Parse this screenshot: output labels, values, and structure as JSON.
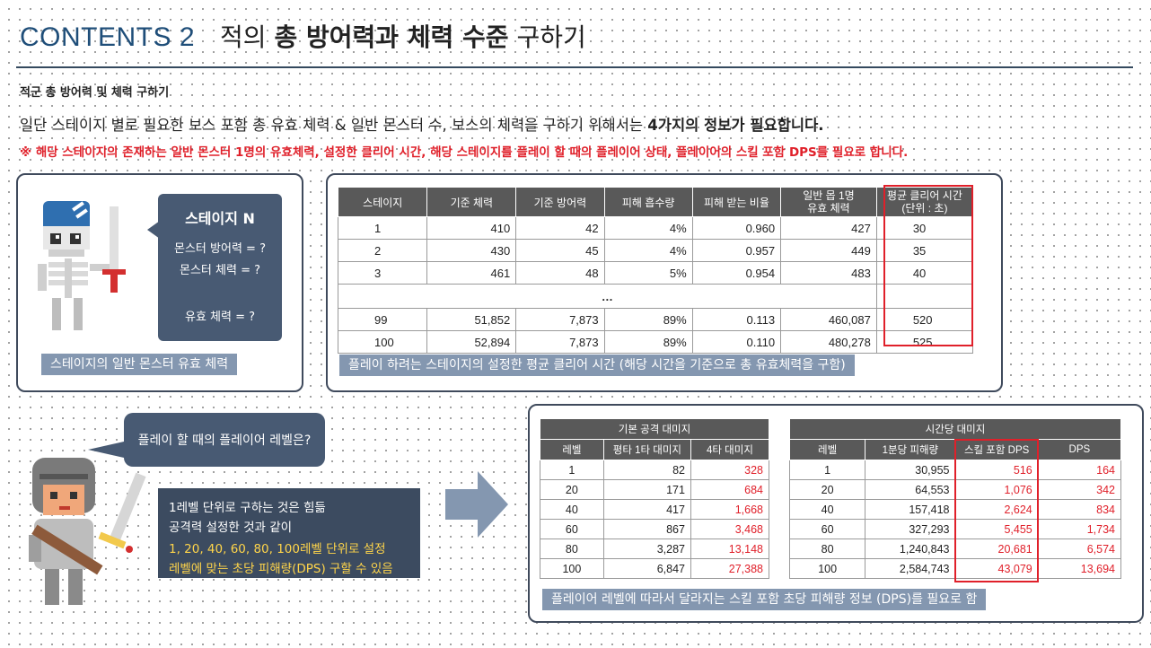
{
  "title": {
    "contents": "CONTENTS 2",
    "pre": "적의 ",
    "bold": "총 방어력과 체력 수준",
    "post": " 구하기"
  },
  "subtitle": "적군 총 방어력 및 체력 구하기",
  "desc1": {
    "text": "일단 스테이지 별로 필요한 보스 포함 총 유효 체력 & 일반 몬스터 수, 보스의 체력을 구하기 위해서는 ",
    "bold": "4가지의 정보가 필요합니다."
  },
  "desc2": "※ 해당 스테이지의 존재하는 일반 몬스터 1명의 유효체력, 설정한 클리어 시간, 해당 스테이지를 플레이 할 때의 플레이어 상태, 플레이어의 스킬 포함 DPS를 필요로 합니다.",
  "stage_bubble": {
    "title": "스테이지 N",
    "line1": "몬스터 방어력 = ?",
    "line2": "몬스터 체력 = ?",
    "line3": "유효 체력 = ?"
  },
  "caption_left": "스테이지의 일반 몬스터 유효 체력",
  "caption_right": "플레이 하려는 스테이지의 설정한 평균 클리어 시간 (해당 시간을 기준으로 총 유효체력을 구함)",
  "stage_table": {
    "headers": [
      "스테이지",
      "기준 체력",
      "기준 방어력",
      "피해 흡수량",
      "피해 받는 비율",
      "일반 몹 1명\n유효 체력",
      "평균 클리어 시간\n(단위 : 초)"
    ],
    "rows": [
      [
        "1",
        "410",
        "42",
        "4%",
        "0.960",
        "427",
        "30"
      ],
      [
        "2",
        "430",
        "45",
        "4%",
        "0.957",
        "449",
        "35"
      ],
      [
        "3",
        "461",
        "48",
        "5%",
        "0.954",
        "483",
        "40"
      ],
      [
        "99",
        "51,852",
        "7,873",
        "89%",
        "0.113",
        "460,087",
        "520"
      ],
      [
        "100",
        "52,894",
        "7,873",
        "89%",
        "0.110",
        "480,278",
        "525"
      ]
    ],
    "ellipsis": "…"
  },
  "level_bubble": "플레이 할 때의 플레이어 레벨은?",
  "info_bubble": {
    "line1": "1레벨 단위로 구하는 것은 힘듦",
    "line2": "공격력 설정한 것과 같이",
    "line3": "1, 20, 40, 60, 80, 100레벨  단위로 설정",
    "line4": "레벨에 맞는 초당 피해량(DPS) 구할 수 있음"
  },
  "base_table": {
    "title": "기본 공격 대미지",
    "headers": [
      "레벨",
      "평타 1타 대미지",
      "4타 대미지"
    ],
    "rows": [
      [
        "1",
        "82",
        "328"
      ],
      [
        "20",
        "171",
        "684"
      ],
      [
        "40",
        "417",
        "1,668"
      ],
      [
        "60",
        "867",
        "3,468"
      ],
      [
        "80",
        "3,287",
        "13,148"
      ],
      [
        "100",
        "6,847",
        "27,388"
      ]
    ]
  },
  "time_table": {
    "title": "시간당 대미지",
    "headers": [
      "레벨",
      "1분당 피해량",
      "스킬 포함 DPS",
      "DPS"
    ],
    "rows": [
      [
        "1",
        "30,955",
        "516",
        "164"
      ],
      [
        "20",
        "64,553",
        "1,076",
        "342"
      ],
      [
        "40",
        "157,418",
        "2,624",
        "834"
      ],
      [
        "60",
        "327,293",
        "5,455",
        "1,734"
      ],
      [
        "80",
        "1,240,843",
        "20,681",
        "6,574"
      ],
      [
        "100",
        "2,584,743",
        "43,079",
        "13,694"
      ]
    ]
  },
  "caption_bottom": "플레이어 레벨에 따라서 달라지는 스킬 포함 초당 피해량 정보 (DPS)를 필요로 함",
  "colors": {
    "navy": "#1f4e79",
    "bubble": "#485a73",
    "caption": "#8497b0",
    "header": "#595959",
    "red": "#e0202a",
    "yellow": "#ffd54a"
  },
  "icons": [
    "skeleton-character-icon",
    "knight-character-icon",
    "right-arrow-icon"
  ]
}
